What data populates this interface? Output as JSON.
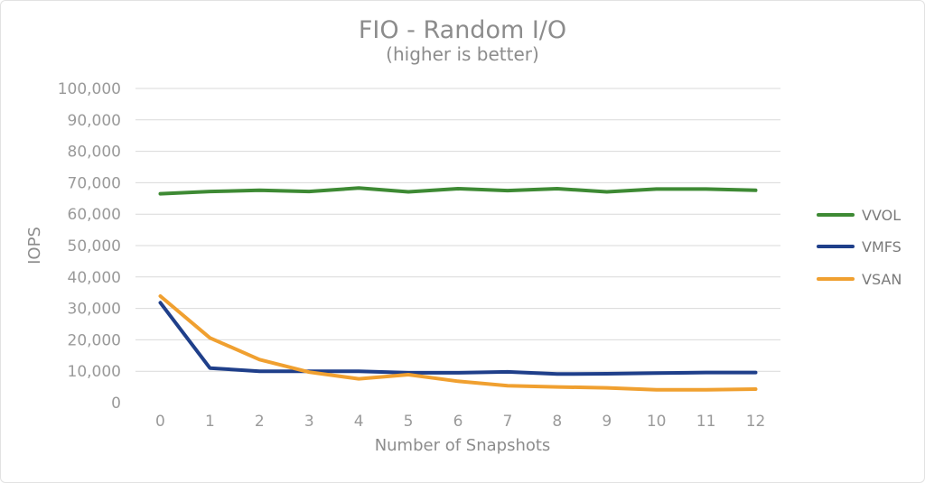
{
  "chart_data": {
    "type": "line",
    "title": "FIO - Random I/O",
    "subtitle": "(higher is better)",
    "xlabel": "Number of Snapshots",
    "ylabel": "IOPS",
    "x": [
      0,
      1,
      2,
      3,
      4,
      5,
      6,
      7,
      8,
      9,
      10,
      11,
      12
    ],
    "x_tick_labels": [
      "0",
      "1",
      "2",
      "3",
      "4",
      "5",
      "6",
      "7",
      "8",
      "9",
      "10",
      "11",
      "12"
    ],
    "ylim": [
      0,
      100000
    ],
    "y_ticks": [
      0,
      10000,
      20000,
      30000,
      40000,
      50000,
      60000,
      70000,
      80000,
      90000,
      100000
    ],
    "y_tick_labels": [
      "0",
      "10,000",
      "20,000",
      "30,000",
      "40,000",
      "50,000",
      "60,000",
      "70,000",
      "80,000",
      "90,000",
      "100,000"
    ],
    "grid": true,
    "legend_position": "right",
    "series": [
      {
        "name": "VVOL",
        "color": "#3e8a34",
        "values": [
          66500,
          67200,
          67600,
          67200,
          68300,
          67100,
          68100,
          67500,
          68100,
          67100,
          68000,
          68000,
          67600
        ]
      },
      {
        "name": "VMFS",
        "color": "#1f3f8a",
        "values": [
          31800,
          11000,
          10000,
          10000,
          10000,
          9500,
          9500,
          9800,
          9100,
          9200,
          9400,
          9600,
          9600
        ]
      },
      {
        "name": "VSAN",
        "color": "#f0a030",
        "values": [
          33900,
          20600,
          13700,
          9700,
          7600,
          8900,
          6800,
          5400,
          5000,
          4700,
          4100,
          4100,
          4300
        ]
      }
    ]
  }
}
